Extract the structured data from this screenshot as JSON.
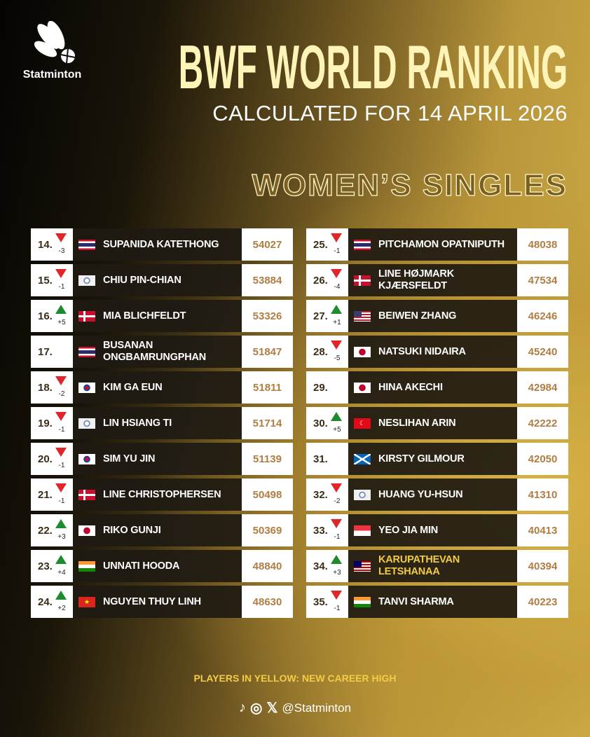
{
  "brand": {
    "logo_text": "Statminton"
  },
  "header": {
    "title": "BWF WORLD RANKING",
    "subtitle": "CALCULATED FOR 14 APRIL 2026",
    "category": "WOMEN’S SINGLES"
  },
  "colors": {
    "up": "#1f8a2e",
    "down": "#e0262a",
    "career_high": "#f3cc45",
    "score": "#b07d42"
  },
  "columns": [
    [
      {
        "rank": "14.",
        "trend": "down",
        "change": "-3",
        "flag": "th",
        "name": "SUPANIDA KATETHONG",
        "points": "54027"
      },
      {
        "rank": "15.",
        "trend": "down",
        "change": "-1",
        "flag": "tpe",
        "name": "CHIU PIN-CHIAN",
        "points": "53884"
      },
      {
        "rank": "16.",
        "trend": "up",
        "change": "+5",
        "flag": "dk",
        "name": "MIA BLICHFELDT",
        "points": "53326"
      },
      {
        "rank": "17.",
        "trend": "",
        "change": "",
        "flag": "th",
        "name": "BUSANAN ONGBAMRUNGPHAN",
        "points": "51847"
      },
      {
        "rank": "18.",
        "trend": "down",
        "change": "-2",
        "flag": "kr",
        "name": "KIM GA EUN",
        "points": "51811"
      },
      {
        "rank": "19.",
        "trend": "down",
        "change": "-1",
        "flag": "tpe",
        "name": "LIN HSIANG TI",
        "points": "51714"
      },
      {
        "rank": "20.",
        "trend": "down",
        "change": "-1",
        "flag": "kr",
        "name": "SIM YU JIN",
        "points": "51139"
      },
      {
        "rank": "21.",
        "trend": "down",
        "change": "-1",
        "flag": "dk",
        "name": "LINE CHRISTOPHERSEN",
        "points": "50498"
      },
      {
        "rank": "22.",
        "trend": "up",
        "change": "+3",
        "flag": "jp",
        "name": "RIKO GUNJI",
        "points": "50369"
      },
      {
        "rank": "23.",
        "trend": "up",
        "change": "+4",
        "flag": "in",
        "name": "UNNATI HOODA",
        "points": "48840"
      },
      {
        "rank": "24.",
        "trend": "up",
        "change": "+2",
        "flag": "vn",
        "name": "NGUYEN THUY LINH",
        "points": "48630"
      }
    ],
    [
      {
        "rank": "25.",
        "trend": "down",
        "change": "-1",
        "flag": "th",
        "name": "PITCHAMON OPATNIPUTH",
        "points": "48038"
      },
      {
        "rank": "26.",
        "trend": "down",
        "change": "-4",
        "flag": "dk",
        "name": "LINE HØJMARK KJÆRSFELDT",
        "points": "47534"
      },
      {
        "rank": "27.",
        "trend": "up",
        "change": "+1",
        "flag": "us",
        "name": "BEIWEN ZHANG",
        "points": "46246"
      },
      {
        "rank": "28.",
        "trend": "down",
        "change": "-5",
        "flag": "jp",
        "name": "NATSUKI NIDAIRA",
        "points": "45240"
      },
      {
        "rank": "29.",
        "trend": "",
        "change": "",
        "flag": "jp",
        "name": "HINA AKECHI",
        "points": "42984"
      },
      {
        "rank": "30.",
        "trend": "up",
        "change": "+5",
        "flag": "tr",
        "name": "NESLIHAN ARIN",
        "points": "42222"
      },
      {
        "rank": "31.",
        "trend": "",
        "change": "",
        "flag": "sco",
        "name": "KIRSTY GILMOUR",
        "points": "42050"
      },
      {
        "rank": "32.",
        "trend": "down",
        "change": "-2",
        "flag": "tpe",
        "name": "HUANG YU-HSUN",
        "points": "41310"
      },
      {
        "rank": "33.",
        "trend": "down",
        "change": "-1",
        "flag": "sg",
        "name": "YEO JIA MIN",
        "points": "40413"
      },
      {
        "rank": "34.",
        "trend": "up",
        "change": "+3",
        "flag": "my",
        "name": "KARUPATHEVAN LETSHANAA",
        "points": "40394",
        "career_high": true
      },
      {
        "rank": "35.",
        "trend": "down",
        "change": "-1",
        "flag": "in",
        "name": "TANVI SHARMA",
        "points": "40223"
      }
    ]
  ],
  "footer": {
    "note": "PLAYERS IN YELLOW: NEW CAREER HIGH",
    "social_icons": [
      "tiktok-icon",
      "instagram-icon",
      "x-icon"
    ],
    "handle": "@Statminton"
  }
}
